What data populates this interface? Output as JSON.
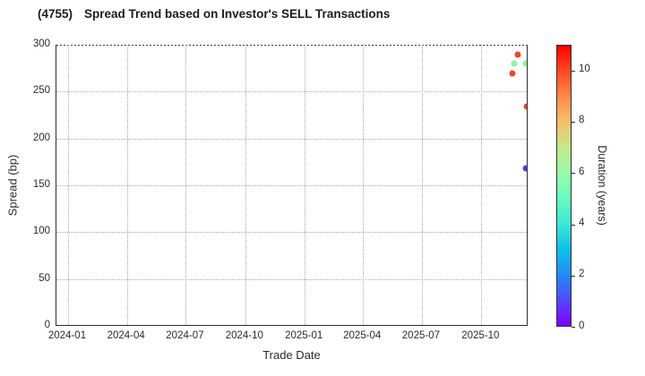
{
  "header": {
    "title_code": "(4755)",
    "title_text": "Spread Trend based on Investor's SELL Transactions"
  },
  "chart_data": {
    "type": "scatter",
    "title": "(4755)  Spread Trend based on Investor's SELL Transactions",
    "xlabel": "Trade Date",
    "ylabel": "Spread (bp)",
    "grid": true,
    "legend": false,
    "x_axis": {
      "start_date": "2023-12-14",
      "end_date": "2025-12-13",
      "tick_labels": [
        "2024-01",
        "2024-04",
        "2024-07",
        "2024-10",
        "2025-01",
        "2025-04",
        "2025-07",
        "2025-10"
      ]
    },
    "y_axis": {
      "min": 0,
      "max": 300,
      "ticks": [
        0,
        50,
        100,
        150,
        200,
        250,
        300
      ]
    },
    "colorbar": {
      "label": "Duration (years)",
      "min": 0,
      "max": 11,
      "ticks": [
        0,
        2,
        4,
        6,
        8,
        10
      ],
      "colormap": "rainbow",
      "gradient_stops": [
        {
          "value": 0,
          "color": "#8000ff"
        },
        {
          "value": 1,
          "color": "#5247fc"
        },
        {
          "value": 2,
          "color": "#238af5"
        },
        {
          "value": 3,
          "color": "#0cc1e8"
        },
        {
          "value": 4,
          "color": "#3ae8d6"
        },
        {
          "value": 5,
          "color": "#68fcc1"
        },
        {
          "value": 6,
          "color": "#97fca7"
        },
        {
          "value": 7,
          "color": "#c5e88a"
        },
        {
          "value": 8,
          "color": "#f4c16a"
        },
        {
          "value": 9,
          "color": "#ff8a48"
        },
        {
          "value": 10,
          "color": "#ff4824"
        },
        {
          "value": 11,
          "color": "#ff0000"
        }
      ]
    },
    "points": [
      {
        "date": "2025-11-27",
        "spread": 290,
        "duration": 10.3,
        "color": "#f2452a"
      },
      {
        "date": "2025-11-21",
        "spread": 280,
        "duration": 6.0,
        "color": "#8df49f"
      },
      {
        "date": "2025-12-09",
        "spread": 280,
        "duration": 6.0,
        "color": "#8df49f"
      },
      {
        "date": "2025-11-18",
        "spread": 269,
        "duration": 10.3,
        "color": "#f2452a"
      },
      {
        "date": "2025-12-10",
        "spread": 234,
        "duration": 10.3,
        "color": "#f2452a"
      },
      {
        "date": "2025-12-09",
        "spread": 168,
        "duration": 1.0,
        "color": "#4e3ef4"
      }
    ],
    "style": {
      "spine_color": "#2f2f2f",
      "grid_color": "#a9a9a9",
      "text_color": "#2b2b2b",
      "background": "#ffffff"
    }
  }
}
